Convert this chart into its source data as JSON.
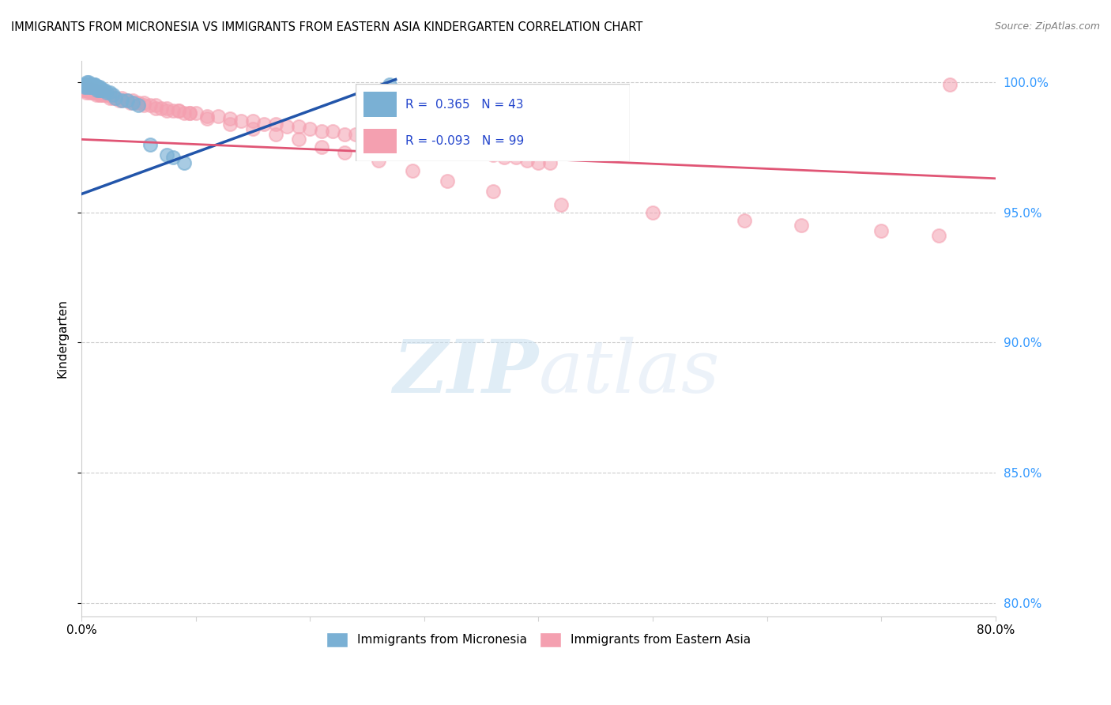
{
  "title": "IMMIGRANTS FROM MICRONESIA VS IMMIGRANTS FROM EASTERN ASIA KINDERGARTEN CORRELATION CHART",
  "source": "Source: ZipAtlas.com",
  "ylabel": "Kindergarten",
  "xlim": [
    0.0,
    0.8
  ],
  "ylim": [
    0.795,
    1.008
  ],
  "xtick_vals": [
    0.0,
    0.1,
    0.2,
    0.3,
    0.4,
    0.5,
    0.6,
    0.7,
    0.8
  ],
  "xtick_labels_show": {
    "0.0": "0.0%",
    "0.80": "80.0%"
  },
  "ytick_vals": [
    0.8,
    0.85,
    0.9,
    0.95,
    1.0
  ],
  "ytick_labels_right": [
    "80.0%",
    "85.0%",
    "90.0%",
    "95.0%",
    "100.0%"
  ],
  "legend_blue_label": "Immigrants from Micronesia",
  "legend_pink_label": "Immigrants from Eastern Asia",
  "R_blue": 0.365,
  "N_blue": 43,
  "R_pink": -0.093,
  "N_pink": 99,
  "blue_color": "#7ab0d4",
  "pink_color": "#f4a0b0",
  "blue_line_color": "#2255aa",
  "pink_line_color": "#e05575",
  "blue_line_x": [
    0.0,
    0.275
  ],
  "blue_line_y": [
    0.957,
    1.001
  ],
  "pink_line_x": [
    0.0,
    0.8
  ],
  "pink_line_y": [
    0.978,
    0.963
  ],
  "blue_points_x": [
    0.002,
    0.003,
    0.003,
    0.004,
    0.004,
    0.005,
    0.005,
    0.006,
    0.006,
    0.007,
    0.007,
    0.008,
    0.008,
    0.009,
    0.009,
    0.01,
    0.01,
    0.011,
    0.011,
    0.012,
    0.012,
    0.013,
    0.014,
    0.015,
    0.015,
    0.016,
    0.017,
    0.018,
    0.019,
    0.02,
    0.022,
    0.025,
    0.028,
    0.03,
    0.035,
    0.04,
    0.045,
    0.05,
    0.06,
    0.075,
    0.08,
    0.09,
    0.27
  ],
  "blue_points_y": [
    0.999,
    0.999,
    0.998,
    0.999,
    0.998,
    1.0,
    0.999,
    1.0,
    0.999,
    0.999,
    0.998,
    0.999,
    0.998,
    0.999,
    0.998,
    0.999,
    0.998,
    0.999,
    0.998,
    0.999,
    0.998,
    0.998,
    0.997,
    0.998,
    0.997,
    0.998,
    0.997,
    0.997,
    0.997,
    0.997,
    0.996,
    0.996,
    0.995,
    0.994,
    0.993,
    0.993,
    0.992,
    0.991,
    0.976,
    0.972,
    0.971,
    0.969,
    0.999
  ],
  "pink_points_x": [
    0.002,
    0.003,
    0.004,
    0.005,
    0.006,
    0.007,
    0.008,
    0.009,
    0.01,
    0.011,
    0.012,
    0.013,
    0.014,
    0.015,
    0.016,
    0.017,
    0.018,
    0.019,
    0.02,
    0.022,
    0.025,
    0.028,
    0.03,
    0.033,
    0.036,
    0.04,
    0.043,
    0.047,
    0.05,
    0.055,
    0.06,
    0.065,
    0.07,
    0.075,
    0.08,
    0.085,
    0.09,
    0.095,
    0.1,
    0.11,
    0.12,
    0.13,
    0.14,
    0.15,
    0.16,
    0.17,
    0.18,
    0.19,
    0.2,
    0.21,
    0.22,
    0.23,
    0.24,
    0.25,
    0.26,
    0.27,
    0.28,
    0.29,
    0.3,
    0.31,
    0.32,
    0.33,
    0.34,
    0.35,
    0.36,
    0.37,
    0.38,
    0.39,
    0.4,
    0.41,
    0.005,
    0.008,
    0.012,
    0.018,
    0.025,
    0.035,
    0.045,
    0.055,
    0.065,
    0.075,
    0.085,
    0.095,
    0.11,
    0.13,
    0.15,
    0.17,
    0.19,
    0.21,
    0.23,
    0.26,
    0.29,
    0.32,
    0.36,
    0.42,
    0.5,
    0.58,
    0.63,
    0.7,
    0.75,
    0.76
  ],
  "pink_points_y": [
    0.997,
    0.997,
    0.996,
    0.997,
    0.997,
    0.996,
    0.997,
    0.996,
    0.996,
    0.997,
    0.996,
    0.995,
    0.996,
    0.996,
    0.995,
    0.995,
    0.996,
    0.995,
    0.995,
    0.995,
    0.994,
    0.994,
    0.994,
    0.993,
    0.993,
    0.993,
    0.992,
    0.992,
    0.992,
    0.991,
    0.991,
    0.99,
    0.99,
    0.989,
    0.989,
    0.989,
    0.988,
    0.988,
    0.988,
    0.987,
    0.987,
    0.986,
    0.985,
    0.985,
    0.984,
    0.984,
    0.983,
    0.983,
    0.982,
    0.981,
    0.981,
    0.98,
    0.98,
    0.979,
    0.978,
    0.978,
    0.977,
    0.976,
    0.976,
    0.975,
    0.975,
    0.974,
    0.973,
    0.973,
    0.972,
    0.971,
    0.971,
    0.97,
    0.969,
    0.969,
    0.998,
    0.997,
    0.997,
    0.996,
    0.995,
    0.994,
    0.993,
    0.992,
    0.991,
    0.99,
    0.989,
    0.988,
    0.986,
    0.984,
    0.982,
    0.98,
    0.978,
    0.975,
    0.973,
    0.97,
    0.966,
    0.962,
    0.958,
    0.953,
    0.95,
    0.947,
    0.945,
    0.943,
    0.941,
    0.999
  ]
}
